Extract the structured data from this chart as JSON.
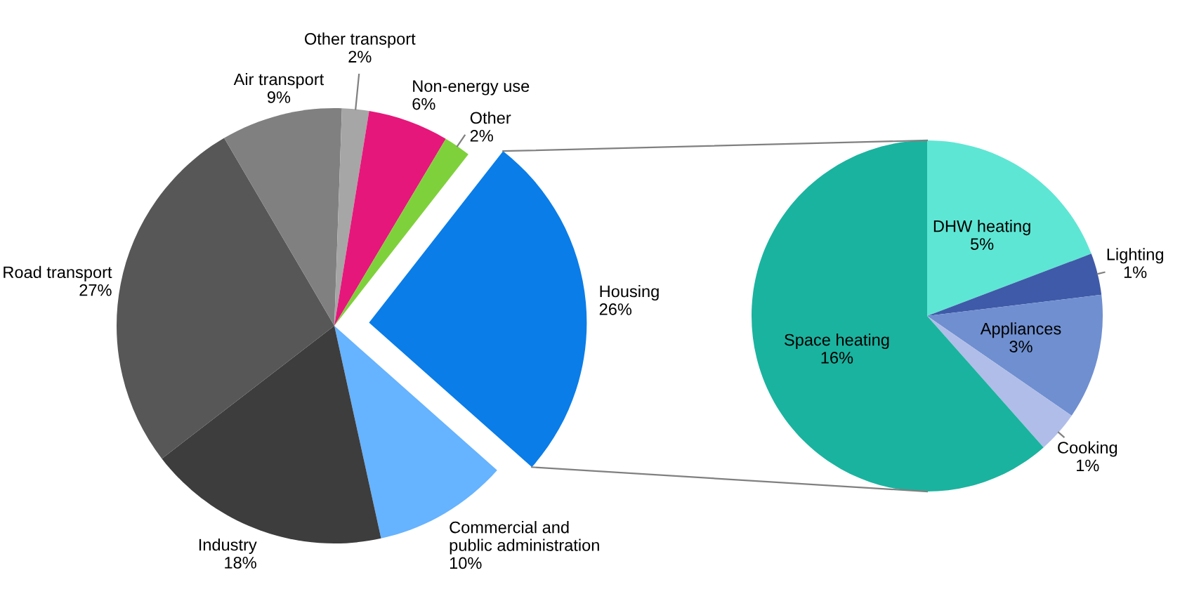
{
  "chart_data": [
    {
      "type": "pie",
      "categories": [
        "Housing",
        "Commercial and public administration",
        "Industry",
        "Road transport",
        "Air transport",
        "Other transport",
        "Non-energy use",
        "Other"
      ],
      "values": [
        26,
        10,
        18,
        27,
        9,
        2,
        6,
        2
      ],
      "colors": [
        "#0a7de8",
        "#66b3ff",
        "#3d3d3d",
        "#575757",
        "#808080",
        "#a6a6a6",
        "#e6177a",
        "#7fd13b"
      ],
      "value_labels": [
        "26%",
        "10%",
        "18%",
        "27%",
        "9%",
        "2%",
        "6%",
        "2%"
      ]
    },
    {
      "type": "pie",
      "categories": [
        "DHW heating",
        "Lighting",
        "Appliances",
        "Cooking",
        "Space heating"
      ],
      "values": [
        5,
        1,
        3,
        1,
        16
      ],
      "colors": [
        "#5ee6d4",
        "#3f5aa8",
        "#6f8fd0",
        "#b0bde8",
        "#1ab39f"
      ],
      "value_labels": [
        "5%",
        "1%",
        "3%",
        "1%",
        "16%"
      ]
    }
  ]
}
